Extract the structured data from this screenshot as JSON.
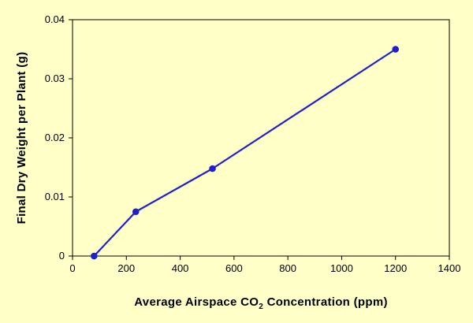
{
  "chart_data": {
    "type": "line",
    "title": "",
    "xlabel_parts": [
      "Average  Airspace  CO",
      "2",
      "  Concentration  (ppm)"
    ],
    "ylabel": "Final  Dry  Weight  per  Plant  (g)",
    "xlim": [
      0,
      1400
    ],
    "ylim": [
      0,
      0.04
    ],
    "x_ticks": [
      0,
      200,
      400,
      600,
      800,
      1000,
      1200,
      1400
    ],
    "y_ticks": [
      0,
      0.01,
      0.02,
      0.03,
      0.04
    ],
    "y_tick_labels": [
      "0",
      "0.01",
      "0.02",
      "0.03",
      "0.04"
    ],
    "grid": false,
    "series": [
      {
        "name": "Final Dry Weight",
        "color": "#1f1fd1",
        "x": [
          80,
          235,
          520,
          1200
        ],
        "y": [
          0.0,
          0.0075,
          0.0148,
          0.035
        ]
      }
    ]
  }
}
